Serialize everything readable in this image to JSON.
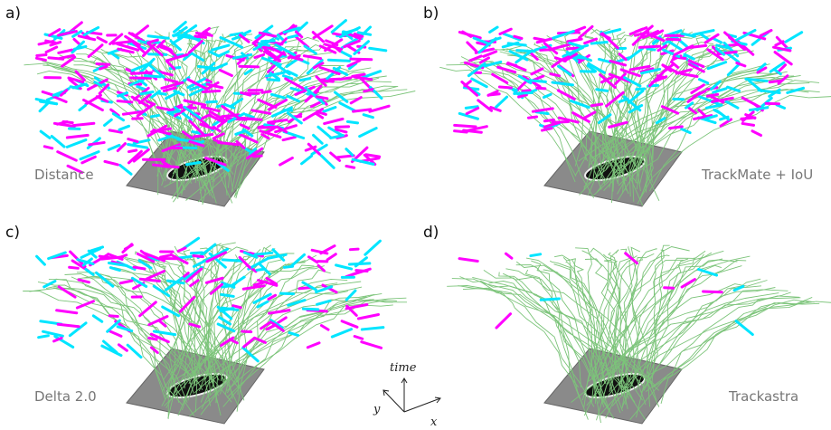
{
  "panels": [
    {
      "label": "a)",
      "method": "Distance"
    },
    {
      "label": "b)",
      "method": "TrackMate + IoU"
    },
    {
      "label": "c)",
      "method": "Delta 2.0"
    },
    {
      "label": "d)",
      "method": "Trackastra"
    }
  ],
  "axes": {
    "time": "time",
    "x": "x",
    "y": "y"
  }
}
